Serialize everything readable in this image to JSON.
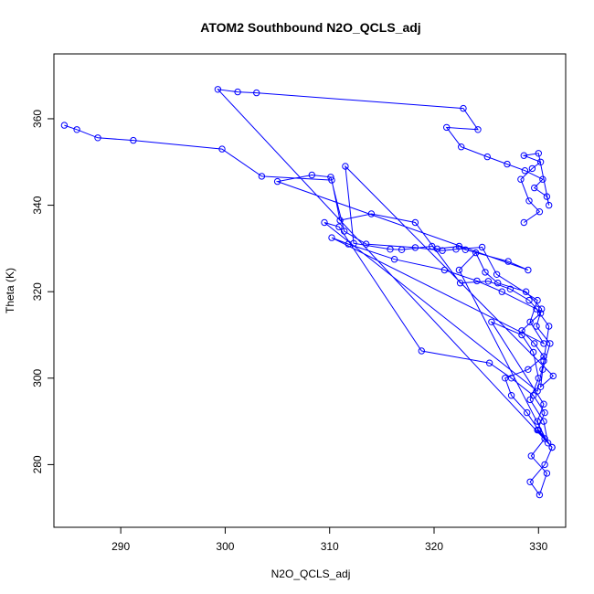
{
  "chart_data": {
    "type": "line",
    "title": "ATOM2 Southbound N2O_QCLS_adj",
    "xlabel": "N2O_QCLS_adj",
    "ylabel": "Theta (K)",
    "xlim": [
      283.6,
      332.6
    ],
    "ylim": [
      265.5,
      375.0
    ],
    "xticks": [
      "290",
      "300",
      "310",
      "320",
      "330"
    ],
    "yticks": [
      "280",
      "300",
      "320",
      "340",
      "360"
    ],
    "grid": false,
    "legend": "none",
    "marker": "open-circle",
    "colors": {
      "series": "#0000ff",
      "axis": "#000000"
    },
    "series": [
      {
        "x": [
          284.6,
          285.8,
          287.8,
          291.2,
          299.7,
          303.5,
          310.2,
          311.0,
          314.0,
          318.2,
          322.5,
          325.2,
          327.3,
          329.1,
          330.2,
          328.4,
          329.6,
          330.5,
          329.0,
          326.8,
          327.4,
          328.9,
          330.0,
          331.3,
          330.6,
          329.2,
          330.1,
          330.8,
          329.3,
          330.6,
          329.9,
          330.5,
          325.5,
          328.4,
          329.5,
          330.0,
          329.2,
          330.5,
          330.9,
          322.4,
          324.0,
          324.9,
          326.1,
          328.8,
          330.3,
          329.8,
          331.1,
          330.4,
          330.2,
          331.4,
          311.5,
          312.3,
          315.8,
          316.9,
          319.8,
          320.3,
          322.4,
          323.0,
          327.1,
          329.0,
          305.0,
          308.3,
          310.1,
          311.4,
          313.5,
          318.2,
          320.8,
          322.1,
          324.6,
          326.0,
          329.9,
          329.2,
          330.5,
          310.2,
          311.8,
          316.2,
          321.0,
          324.1,
          326.5,
          329.8,
          331.0,
          330.5,
          329.9,
          309.5,
          310.9,
          318.8,
          325.3,
          327.4,
          329.5,
          330.6,
          329.9,
          331.3,
          299.3,
          301.2,
          303.0,
          322.8,
          324.2,
          321.2,
          322.6,
          325.1,
          327.0,
          328.7,
          330.4,
          329.6,
          330.8,
          331.0,
          330.0,
          328.6,
          330.2,
          329.4,
          328.3,
          329.1,
          330.1,
          328.6
        ],
        "y": [
          358.5,
          357.5,
          355.6,
          355.0,
          353.0,
          346.7,
          345.8,
          336.5,
          338.0,
          336.0,
          322.0,
          322.4,
          320.6,
          318.0,
          315.0,
          311.0,
          308.0,
          305.0,
          302.0,
          300.0,
          296.0,
          292.0,
          288.0,
          284.0,
          280.0,
          276.0,
          273.0,
          278.0,
          282.0,
          286.0,
          290.0,
          294.0,
          313.0,
          310.0,
          306.0,
          300.0,
          295.0,
          290.0,
          285.0,
          325.0,
          329.0,
          324.5,
          322.0,
          320.0,
          316.0,
          312.0,
          308.0,
          302.0,
          298.0,
          300.5,
          349.0,
          331.2,
          329.8,
          329.7,
          330.5,
          329.9,
          330.5,
          329.7,
          327.0,
          325.0,
          345.5,
          347.0,
          346.5,
          334.0,
          331.0,
          330.2,
          329.5,
          329.8,
          330.3,
          324.0,
          318.0,
          313.0,
          308.0,
          332.5,
          331.0,
          327.5,
          325.0,
          322.5,
          320.0,
          316.0,
          312.0,
          304.0,
          297.0,
          336.0,
          335.0,
          306.3,
          303.5,
          300.0,
          296.0,
          292.0,
          288.0,
          284.0,
          366.8,
          366.2,
          366.0,
          362.4,
          357.5,
          358.0,
          353.5,
          351.2,
          349.5,
          348.0,
          346.0,
          344.0,
          342.0,
          340.0,
          352.0,
          351.5,
          350.0,
          348.5,
          346.0,
          341.0,
          338.5,
          336.0
        ]
      }
    ]
  }
}
